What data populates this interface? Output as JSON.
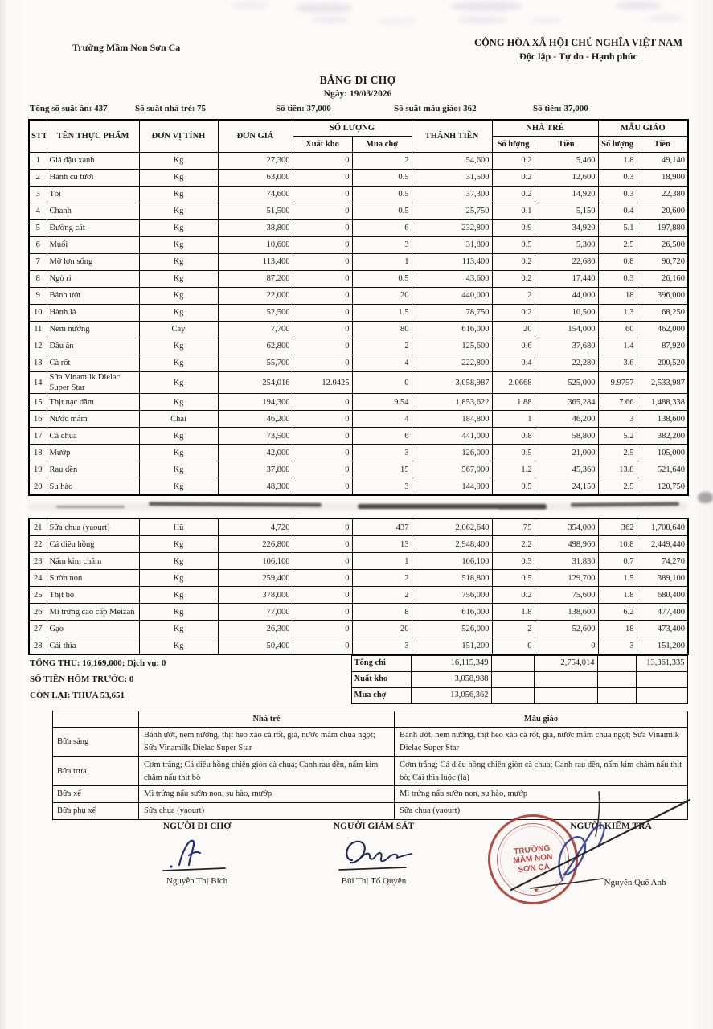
{
  "header": {
    "school": "Trường Mầm Non Sơn Ca",
    "republic": "CỘNG HÒA XÃ HỘI CHỦ NGHĨA VIỆT NAM",
    "motto": "Độc lập - Tự do - Hạnh phúc",
    "title": "BẢNG ĐI CHỢ",
    "date": "Ngày: 19/03/2026"
  },
  "stats": {
    "total_servings": "Tổng số suất ăn: 437",
    "nursery_servings": "Số suất nhà trẻ: 75",
    "money_nursery": "Số tiền: 37,000",
    "kindergarten_servings": "Số suất mẫu giáo: 362",
    "money_kindergarten": "Số tiền: 37,000"
  },
  "table": {
    "columns": {
      "stt": "STT",
      "name": "TÊN THỰC PHẨM",
      "unit": "ĐƠN VỊ TÍNH",
      "price": "ĐƠN GIÁ",
      "qty_group": "SỐ LƯỢNG",
      "qty_xk": "Xuất kho",
      "qty_mc": "Mua chợ",
      "total": "THÀNH TIỀN",
      "nt_group": "NHÀ TRẺ",
      "mg_group": "MẪU GIÁO",
      "sub_qty": "Số lượng",
      "sub_money": "Tiền"
    },
    "rows": [
      {
        "stt": "1",
        "name": "Giá đậu xanh",
        "unit": "Kg",
        "price": "27,300",
        "xk": "0",
        "mc": "2",
        "tt": "54,600",
        "ntq": "0.2",
        "ntm": "5,460",
        "mgq": "1.8",
        "mgm": "49,140"
      },
      {
        "stt": "2",
        "name": "Hành củ tươi",
        "unit": "Kg",
        "price": "63,000",
        "xk": "0",
        "mc": "0.5",
        "tt": "31,500",
        "ntq": "0.2",
        "ntm": "12,600",
        "mgq": "0.3",
        "mgm": "18,900"
      },
      {
        "stt": "3",
        "name": "Tỏi",
        "unit": "Kg",
        "price": "74,600",
        "xk": "0",
        "mc": "0.5",
        "tt": "37,300",
        "ntq": "0.2",
        "ntm": "14,920",
        "mgq": "0.3",
        "mgm": "22,380"
      },
      {
        "stt": "4",
        "name": "Chanh",
        "unit": "Kg",
        "price": "51,500",
        "xk": "0",
        "mc": "0.5",
        "tt": "25,750",
        "ntq": "0.1",
        "ntm": "5,150",
        "mgq": "0.4",
        "mgm": "20,600"
      },
      {
        "stt": "5",
        "name": "Đường cát",
        "unit": "Kg",
        "price": "38,800",
        "xk": "0",
        "mc": "6",
        "tt": "232,800",
        "ntq": "0.9",
        "ntm": "34,920",
        "mgq": "5.1",
        "mgm": "197,880"
      },
      {
        "stt": "6",
        "name": "Muối",
        "unit": "Kg",
        "price": "10,600",
        "xk": "0",
        "mc": "3",
        "tt": "31,800",
        "ntq": "0.5",
        "ntm": "5,300",
        "mgq": "2.5",
        "mgm": "26,500"
      },
      {
        "stt": "7",
        "name": "Mỡ lợn sống",
        "unit": "Kg",
        "price": "113,400",
        "xk": "0",
        "mc": "1",
        "tt": "113,400",
        "ntq": "0.2",
        "ntm": "22,680",
        "mgq": "0.8",
        "mgm": "90,720"
      },
      {
        "stt": "8",
        "name": "Ngò rí",
        "unit": "Kg",
        "price": "87,200",
        "xk": "0",
        "mc": "0.5",
        "tt": "43,600",
        "ntq": "0.2",
        "ntm": "17,440",
        "mgq": "0.3",
        "mgm": "26,160"
      },
      {
        "stt": "9",
        "name": "Bánh ướt",
        "unit": "Kg",
        "price": "22,000",
        "xk": "0",
        "mc": "20",
        "tt": "440,000",
        "ntq": "2",
        "ntm": "44,000",
        "mgq": "18",
        "mgm": "396,000"
      },
      {
        "stt": "10",
        "name": "Hành lá",
        "unit": "Kg",
        "price": "52,500",
        "xk": "0",
        "mc": "1.5",
        "tt": "78,750",
        "ntq": "0.2",
        "ntm": "10,500",
        "mgq": "1.3",
        "mgm": "68,250"
      },
      {
        "stt": "11",
        "name": "Nem nướng",
        "unit": "Cây",
        "price": "7,700",
        "xk": "0",
        "mc": "80",
        "tt": "616,000",
        "ntq": "20",
        "ntm": "154,000",
        "mgq": "60",
        "mgm": "462,000"
      },
      {
        "stt": "12",
        "name": "Dầu ăn",
        "unit": "Kg",
        "price": "62,800",
        "xk": "0",
        "mc": "2",
        "tt": "125,600",
        "ntq": "0.6",
        "ntm": "37,680",
        "mgq": "1.4",
        "mgm": "87,920"
      },
      {
        "stt": "13",
        "name": "Cà rốt",
        "unit": "Kg",
        "price": "55,700",
        "xk": "0",
        "mc": "4",
        "tt": "222,800",
        "ntq": "0.4",
        "ntm": "22,280",
        "mgq": "3.6",
        "mgm": "200,520"
      },
      {
        "stt": "14",
        "name": "Sữa Vinamilk Dielac Super Star",
        "unit": "Kg",
        "price": "254,016",
        "xk": "12.0425",
        "mc": "0",
        "tt": "3,058,987",
        "ntq": "2.0668",
        "ntm": "525,000",
        "mgq": "9.9757",
        "mgm": "2,533,987"
      },
      {
        "stt": "15",
        "name": "Thịt nạc dăm",
        "unit": "Kg",
        "price": "194,300",
        "xk": "0",
        "mc": "9.54",
        "tt": "1,853,622",
        "ntq": "1.88",
        "ntm": "365,284",
        "mgq": "7.66",
        "mgm": "1,488,338"
      },
      {
        "stt": "16",
        "name": "Nước mắm",
        "unit": "Chai",
        "price": "46,200",
        "xk": "0",
        "mc": "4",
        "tt": "184,800",
        "ntq": "1",
        "ntm": "46,200",
        "mgq": "3",
        "mgm": "138,600"
      },
      {
        "stt": "17",
        "name": "Cà chua",
        "unit": "Kg",
        "price": "73,500",
        "xk": "0",
        "mc": "6",
        "tt": "441,000",
        "ntq": "0.8",
        "ntm": "58,800",
        "mgq": "5.2",
        "mgm": "382,200"
      },
      {
        "stt": "18",
        "name": "Mướp",
        "unit": "Kg",
        "price": "42,000",
        "xk": "0",
        "mc": "3",
        "tt": "126,000",
        "ntq": "0.5",
        "ntm": "21,000",
        "mgq": "2.5",
        "mgm": "105,000"
      },
      {
        "stt": "19",
        "name": "Rau dền",
        "unit": "Kg",
        "price": "37,800",
        "xk": "0",
        "mc": "15",
        "tt": "567,000",
        "ntq": "1.2",
        "ntm": "45,360",
        "mgq": "13.8",
        "mgm": "521,640"
      },
      {
        "stt": "20",
        "name": "Su hào",
        "unit": "Kg",
        "price": "48,300",
        "xk": "0",
        "mc": "3",
        "tt": "144,900",
        "ntq": "0.5",
        "ntm": "24,150",
        "mgq": "2.5",
        "mgm": "120,750"
      },
      {
        "stt": "21",
        "name": "Sữa chua (yaourt)",
        "unit": "Hũ",
        "price": "4,720",
        "xk": "0",
        "mc": "437",
        "tt": "2,062,640",
        "ntq": "75",
        "ntm": "354,000",
        "mgq": "362",
        "mgm": "1,708,640"
      },
      {
        "stt": "22",
        "name": "Cá diêu hồng",
        "unit": "Kg",
        "price": "226,800",
        "xk": "0",
        "mc": "13",
        "tt": "2,948,400",
        "ntq": "2.2",
        "ntm": "498,960",
        "mgq": "10.8",
        "mgm": "2,449,440"
      },
      {
        "stt": "23",
        "name": "Nấm kim châm",
        "unit": "Kg",
        "price": "106,100",
        "xk": "0",
        "mc": "1",
        "tt": "106,100",
        "ntq": "0.3",
        "ntm": "31,830",
        "mgq": "0.7",
        "mgm": "74,270"
      },
      {
        "stt": "24",
        "name": "Sườn non",
        "unit": "Kg",
        "price": "259,400",
        "xk": "0",
        "mc": "2",
        "tt": "518,800",
        "ntq": "0.5",
        "ntm": "129,700",
        "mgq": "1.5",
        "mgm": "389,100"
      },
      {
        "stt": "25",
        "name": "Thịt bò",
        "unit": "Kg",
        "price": "378,000",
        "xk": "0",
        "mc": "2",
        "tt": "756,000",
        "ntq": "0.2",
        "ntm": "75,600",
        "mgq": "1.8",
        "mgm": "680,400"
      },
      {
        "stt": "26",
        "name": "Mì trứng cao cấp Meizan",
        "unit": "Kg",
        "price": "77,000",
        "xk": "0",
        "mc": "8",
        "tt": "616,000",
        "ntq": "1.8",
        "ntm": "138,600",
        "mgq": "6.2",
        "mgm": "477,400"
      },
      {
        "stt": "27",
        "name": "Gạo",
        "unit": "Kg",
        "price": "26,300",
        "xk": "0",
        "mc": "20",
        "tt": "526,000",
        "ntq": "2",
        "ntm": "52,600",
        "mgq": "18",
        "mgm": "473,400"
      },
      {
        "stt": "28",
        "name": "Cải thìa",
        "unit": "Kg",
        "price": "50,400",
        "xk": "0",
        "mc": "3",
        "tt": "151,200",
        "ntq": "0",
        "ntm": "0",
        "mgq": "3",
        "mgm": "151,200"
      }
    ]
  },
  "totals": {
    "left1": "TỔNG THU: 16,169,000; Dịch vụ: 0",
    "left2": "SỐ TIỀN HÔM TRƯỚC: 0",
    "left3": "CÒN LẠI: THỪA 53,651",
    "row1": {
      "label": "Tổng chi",
      "total": "16,115,349",
      "nt_money": "2,754,014",
      "mg_money": "13,361,335"
    },
    "row2": {
      "label": "Xuất kho",
      "total": "3,058,988"
    },
    "row3": {
      "label": "Mua chợ",
      "total": "13,056,362"
    }
  },
  "meals": {
    "col_nursery": "Nhà trẻ",
    "col_kindergarten": "Mẫu giáo",
    "rows": [
      {
        "label": "Bữa sáng",
        "nt": "Bánh ướt, nem nướng, thịt heo xào cà rốt, giá, nước mắm chua ngọt; Sữa Vinamilk Dielac Super Star",
        "mg": "Bánh ướt, nem nướng, thịt heo xào cà rốt, giá, nước mắm chua ngọt; Sữa Vinamilk Dielac Super Star"
      },
      {
        "label": "Bữa trưa",
        "nt": "Cơm trắng; Cá diêu hồng chiên giòn cà chua; Canh rau dền, nấm kim châm nấu thịt bò",
        "mg": "Cơm trắng; Cá diêu hồng chiên giòn cà chua; Canh rau dền, nấm kim châm nấu thịt bò; Cải thìa luộc (lá)"
      },
      {
        "label": "Bữa xế",
        "nt": "Mì trứng nấu sườn non, su hào, mướp",
        "mg": "Mì trứng nấu sườn non, su hào, mướp"
      },
      {
        "label": "Bữa phụ xế",
        "nt": "Sữa chua (yaourt)",
        "mg": "Sữa chua (yaourt)"
      }
    ]
  },
  "signatures": {
    "buyer": {
      "title": "NGƯỜI ĐI CHỢ",
      "name": "Nguyễn Thị Bích"
    },
    "supervisor": {
      "title": "NGƯỜI GIÁM SÁT",
      "name": "Bùi Thị Tố Quyên"
    },
    "inspector": {
      "title": "NGƯỜI KIỂM TRA",
      "name": "Nguyễn Quế Anh"
    }
  },
  "stamp": {
    "line1": "TRƯỜNG",
    "line2": "MẦM NON",
    "line3": "SƠN CA"
  },
  "colors": {
    "ink": "#1b1b1b",
    "stamp_red": "#b23b32",
    "signature_blue": "#2c3b8e"
  }
}
